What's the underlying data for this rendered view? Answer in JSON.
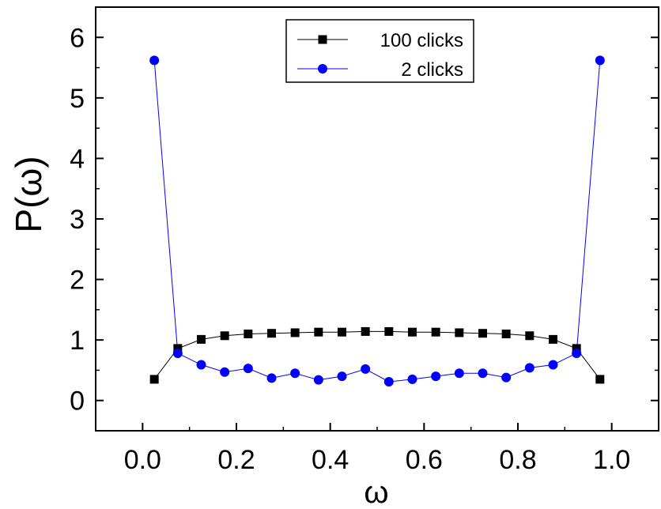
{
  "chart_data": {
    "type": "line",
    "title": "",
    "xlabel": "ω",
    "ylabel": "P(ω)",
    "xlim": [
      -0.1,
      1.1
    ],
    "ylim": [
      -0.5,
      6.5
    ],
    "xticks": [
      "0.0",
      "0.2",
      "0.4",
      "0.6",
      "0.8",
      "1.0"
    ],
    "yticks": [
      "0",
      "1",
      "2",
      "3",
      "4",
      "5",
      "6"
    ],
    "x": [
      0.025,
      0.075,
      0.125,
      0.175,
      0.225,
      0.275,
      0.325,
      0.375,
      0.425,
      0.475,
      0.525,
      0.575,
      0.625,
      0.675,
      0.725,
      0.775,
      0.825,
      0.875,
      0.925,
      0.975
    ],
    "series": [
      {
        "name": "100 clicks",
        "color": "#000000",
        "marker": "square",
        "values": [
          0.35,
          0.86,
          1.01,
          1.07,
          1.1,
          1.11,
          1.12,
          1.13,
          1.13,
          1.14,
          1.14,
          1.13,
          1.13,
          1.12,
          1.11,
          1.1,
          1.07,
          1.01,
          0.86,
          0.35
        ]
      },
      {
        "name": "2 clicks",
        "color": "#0000ff",
        "marker": "circle",
        "values": [
          5.62,
          0.78,
          0.59,
          0.47,
          0.53,
          0.37,
          0.45,
          0.34,
          0.4,
          0.52,
          0.31,
          0.35,
          0.4,
          0.45,
          0.45,
          0.38,
          0.54,
          0.59,
          0.78,
          5.62
        ]
      }
    ],
    "legend": {
      "position": "top-center",
      "entries": [
        "100 clicks",
        "2 clicks"
      ]
    },
    "grid": false
  }
}
